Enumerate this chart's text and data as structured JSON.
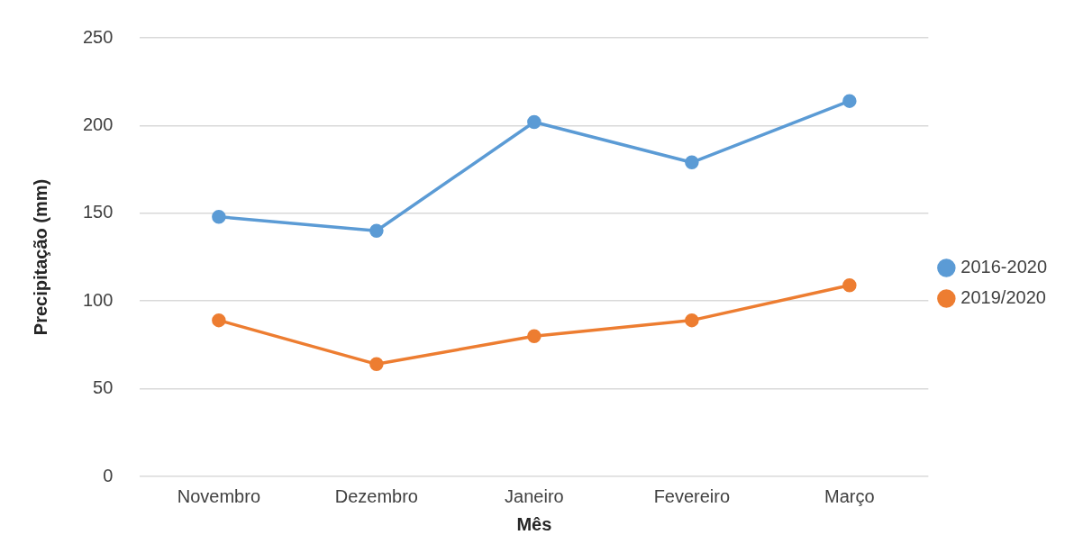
{
  "chart_data": {
    "type": "line",
    "xlabel": "Mês",
    "ylabel": "Precipitação (mm)",
    "categories": [
      "Novembro",
      "Dezembro",
      "Janeiro",
      "Fevereiro",
      "Março"
    ],
    "series": [
      {
        "name": "2016-2020",
        "color": "#5b9bd5",
        "values": [
          148,
          140,
          202,
          179,
          214
        ]
      },
      {
        "name": "2019/2020",
        "color": "#ed7d31",
        "values": [
          89,
          64,
          80,
          89,
          109
        ]
      }
    ],
    "ylim": [
      0,
      250
    ],
    "yticks": [
      0,
      50,
      100,
      150,
      200,
      250
    ],
    "grid": "y",
    "legend": "right",
    "marker": "circle",
    "line_style": "solid"
  }
}
